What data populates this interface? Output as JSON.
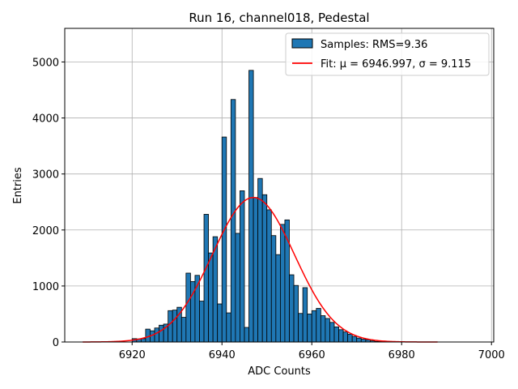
{
  "chart_data": {
    "type": "bar",
    "title": "Run 16, channel018, Pedestal",
    "xlabel": "ADC Counts",
    "ylabel": "Entries",
    "xlim": [
      905,
      1000.5
    ],
    "ylim": [
      0,
      5600
    ],
    "xticks": [
      6920,
      6940,
      6960,
      6980,
      7000
    ],
    "yticks": [
      0,
      1000,
      2000,
      3000,
      4000,
      5000
    ],
    "x_offset": 6000,
    "grid": true,
    "legend_position": "top-right",
    "bin_width": 1,
    "bin_start": 6920,
    "counts": [
      60,
      55,
      60,
      230,
      200,
      250,
      300,
      320,
      560,
      570,
      620,
      440,
      1230,
      1080,
      1190,
      730,
      2280,
      1590,
      1880,
      680,
      3660,
      520,
      4330,
      1940,
      2700,
      260,
      4850,
      2580,
      2920,
      2630,
      2360,
      1900,
      1560,
      2100,
      2180,
      1200,
      1010,
      510,
      970,
      500,
      560,
      600,
      470,
      420,
      350,
      270,
      220,
      180,
      140,
      100,
      70,
      50,
      40,
      20,
      10,
      8,
      5,
      3,
      2
    ],
    "series": [
      {
        "name": "Samples: RMS=9.36",
        "kind": "histogram",
        "color": "#1f77b4",
        "edge": "#000000"
      },
      {
        "name": "Fit: μ = 6946.997, σ = 9.115",
        "kind": "gaussian",
        "color": "#ff0000",
        "mu": 6946.997,
        "sigma": 9.115,
        "amplitude": 2580,
        "x_range": [
          6909,
          6988
        ]
      }
    ]
  }
}
